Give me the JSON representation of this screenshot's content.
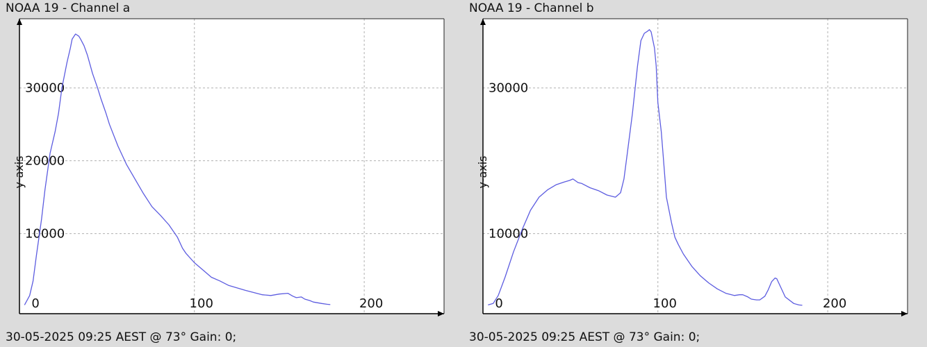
{
  "colors": {
    "background": "#dcdcdc",
    "plot_bg": "#ffffff",
    "grid": "#b0b0b0",
    "line": "#5c5ce0",
    "axis": "#000000"
  },
  "chart_data": [
    {
      "type": "line",
      "title": "NOAA 19 - Channel a",
      "ylabel": "y-axis",
      "xlabel": "",
      "footer": "30-05-2025 09:25 AEST @ 73° Gain: 0;",
      "grid": true,
      "xlim": [
        -3,
        247
      ],
      "ylim": [
        -1000,
        39500
      ],
      "xticks": [
        0,
        100,
        200
      ],
      "yticks": [
        10000,
        20000,
        30000
      ],
      "series": [
        {
          "x": [
            0,
            3,
            5,
            7,
            10,
            12,
            15,
            18,
            20,
            22,
            25,
            27,
            28,
            30,
            32,
            33,
            35,
            37,
            40,
            43,
            45,
            48,
            50,
            55,
            60,
            65,
            70,
            75,
            80,
            85,
            90,
            93,
            95,
            100,
            105,
            110,
            115,
            120,
            130,
            140,
            145,
            150,
            155,
            158,
            160,
            163,
            165,
            168,
            170,
            175,
            178,
            180
          ],
          "values": [
            200,
            1500,
            3500,
            7000,
            12000,
            16000,
            21000,
            24000,
            26500,
            30000,
            33500,
            35500,
            36700,
            37400,
            37100,
            36700,
            35800,
            34500,
            32000,
            30000,
            28500,
            26500,
            25000,
            22000,
            19500,
            17500,
            15500,
            13700,
            12500,
            11200,
            9500,
            8000,
            7300,
            6000,
            5000,
            4000,
            3500,
            2900,
            2200,
            1600,
            1500,
            1700,
            1800,
            1400,
            1200,
            1300,
            1000,
            800,
            600,
            400,
            300,
            250
          ]
        }
      ]
    },
    {
      "type": "line",
      "title": "NOAA 19 - Channel b",
      "ylabel": "y-axis",
      "xlabel": "",
      "footer": "30-05-2025 09:25 AEST @ 73° Gain: 0;",
      "grid": true,
      "xlim": [
        -3,
        247
      ],
      "ylim": [
        -1000,
        39500
      ],
      "xticks": [
        0,
        100,
        200
      ],
      "yticks": [
        10000,
        30000
      ],
      "series": [
        {
          "x": [
            0,
            3,
            6,
            10,
            15,
            20,
            25,
            30,
            35,
            40,
            45,
            48,
            50,
            53,
            55,
            60,
            65,
            70,
            75,
            78,
            80,
            82,
            85,
            88,
            90,
            92,
            94,
            95,
            96,
            98,
            99,
            100,
            102,
            103,
            105,
            108,
            110,
            112,
            115,
            120,
            125,
            130,
            135,
            140,
            145,
            148,
            150,
            153,
            155,
            158,
            160,
            163,
            165,
            167,
            169,
            170,
            172,
            175,
            180,
            183,
            185
          ],
          "values": [
            200,
            400,
            1500,
            4000,
            7500,
            10500,
            13200,
            15000,
            16000,
            16700,
            17100,
            17300,
            17500,
            17000,
            16900,
            16300,
            15900,
            15300,
            15000,
            15600,
            17500,
            21000,
            26500,
            33000,
            36500,
            37500,
            37800,
            38000,
            37700,
            35500,
            33000,
            28000,
            24000,
            21000,
            15000,
            11500,
            9500,
            8500,
            7200,
            5500,
            4200,
            3200,
            2400,
            1800,
            1500,
            1600,
            1600,
            1300,
            1000,
            900,
            900,
            1400,
            2300,
            3400,
            3900,
            3800,
            2800,
            1300,
            400,
            200,
            150
          ]
        }
      ]
    }
  ]
}
